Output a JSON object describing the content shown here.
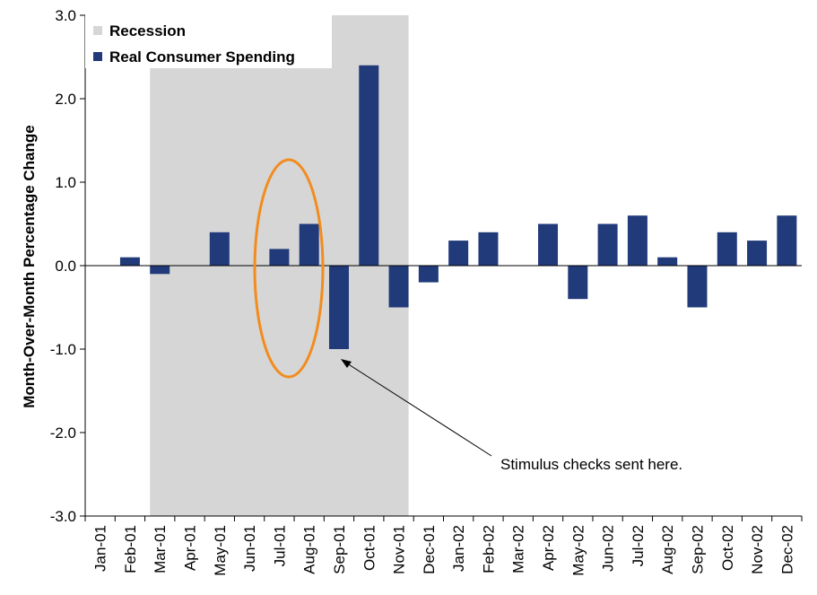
{
  "chart_data": {
    "type": "bar",
    "title": "",
    "xlabel": "",
    "ylabel": "Month-Over-Month Percentage Change",
    "ylim": [
      -3.0,
      3.0
    ],
    "yticks": [
      -3.0,
      -2.0,
      -1.0,
      0.0,
      1.0,
      2.0,
      3.0
    ],
    "ytick_labels": [
      "-3.0",
      "-2.0",
      "-1.0",
      "0.0",
      "1.0",
      "2.0",
      "3.0"
    ],
    "grid": false,
    "legend_position": "top-left",
    "categories": [
      "Jan-01",
      "Feb-01",
      "Mar-01",
      "Apr-01",
      "May-01",
      "Jun-01",
      "Jul-01",
      "Aug-01",
      "Sep-01",
      "Oct-01",
      "Nov-01",
      "Dec-01",
      "Jan-02",
      "Feb-02",
      "Mar-02",
      "Apr-02",
      "May-02",
      "Jun-02",
      "Jul-02",
      "Aug-02",
      "Sep-02",
      "Oct-02",
      "Nov-02",
      "Dec-02"
    ],
    "series": [
      {
        "name": "Real Consumer Spending",
        "color": "#213a7a",
        "values": [
          0.0,
          0.1,
          -0.1,
          0.0,
          0.4,
          0.0,
          0.2,
          0.5,
          -1.0,
          2.4,
          -0.5,
          -0.2,
          0.3,
          0.4,
          0.0,
          0.5,
          -0.4,
          0.5,
          0.6,
          0.1,
          -0.5,
          0.4,
          0.3,
          0.6
        ]
      }
    ],
    "recession": {
      "name": "Recession",
      "color": "#d6d6d6",
      "start": "Mar-01",
      "end": "Nov-01"
    },
    "annotations": [
      {
        "text": "Stimulus checks sent here.",
        "points_to": "Sep-01",
        "highlight": [
          "Jul-01",
          "Aug-01"
        ],
        "highlight_color": "#f28c1e"
      }
    ]
  }
}
